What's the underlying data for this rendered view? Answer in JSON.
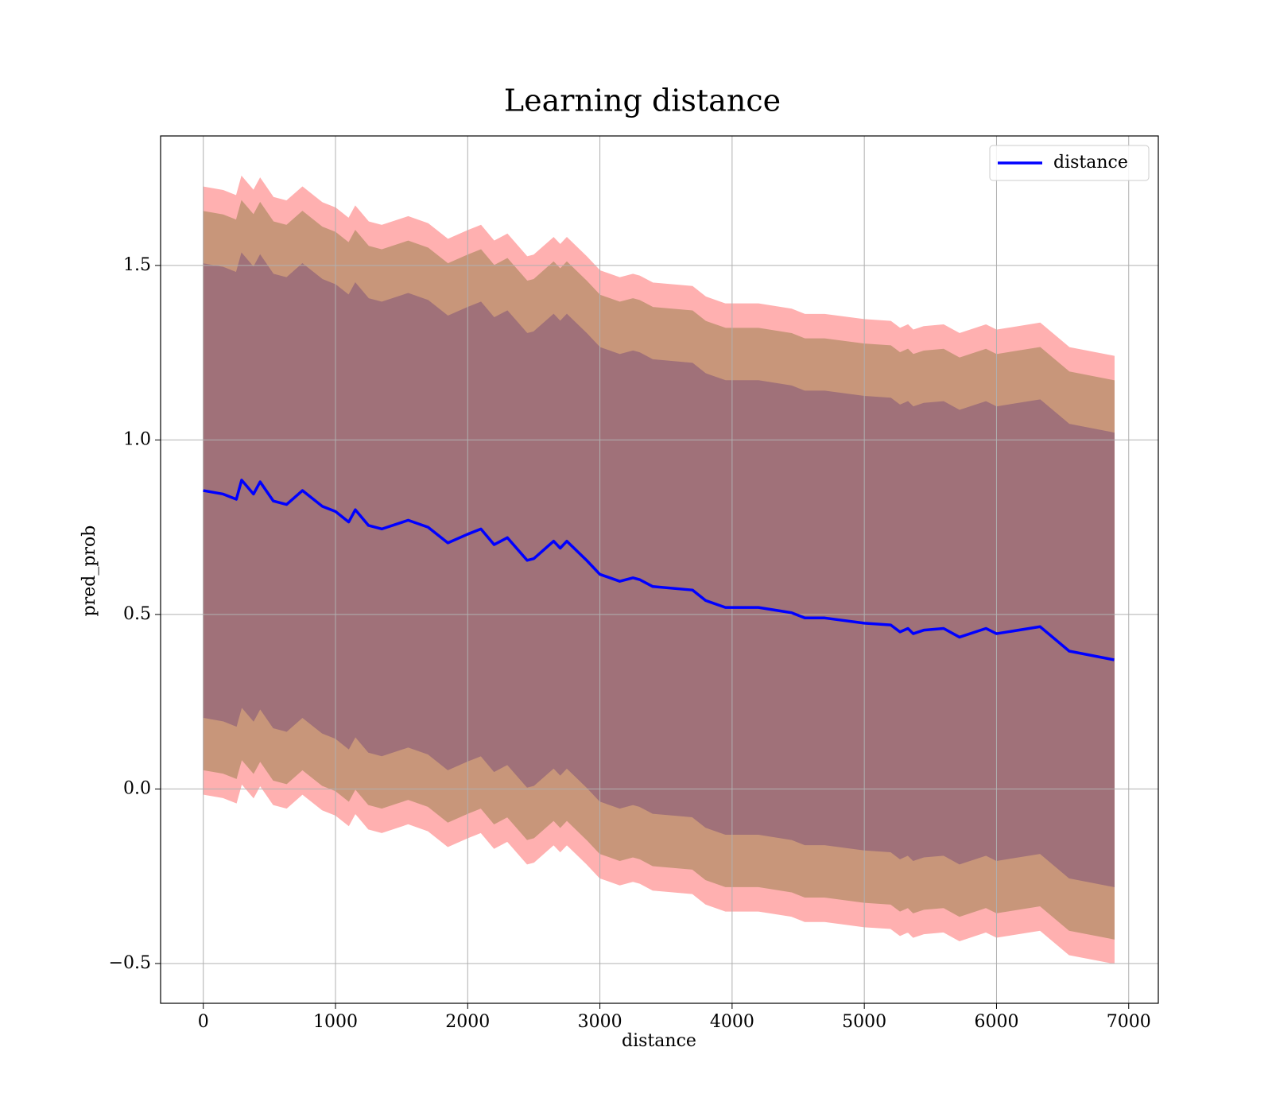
{
  "chart_data": {
    "type": "line",
    "title": "Learning distance",
    "x_label": "distance",
    "y_label": "pred_prob",
    "x": [
      0,
      150,
      250,
      290,
      380,
      430,
      530,
      630,
      750,
      900,
      1000,
      1100,
      1150,
      1250,
      1350,
      1550,
      1700,
      1850,
      2000,
      2100,
      2200,
      2300,
      2450,
      2500,
      2650,
      2700,
      2750,
      2900,
      3000,
      3150,
      3250,
      3300,
      3400,
      3700,
      3800,
      3950,
      4200,
      4450,
      4550,
      4700,
      5000,
      5200,
      5270,
      5330,
      5370,
      5450,
      5600,
      5720,
      5920,
      6000,
      6330,
      6550,
      6890
    ],
    "series": [
      {
        "name": "distance",
        "color": "#0000ff",
        "values": [
          0.855,
          0.845,
          0.83,
          0.885,
          0.845,
          0.88,
          0.825,
          0.815,
          0.855,
          0.81,
          0.795,
          0.765,
          0.8,
          0.755,
          0.745,
          0.77,
          0.75,
          0.705,
          0.73,
          0.745,
          0.7,
          0.72,
          0.655,
          0.66,
          0.71,
          0.69,
          0.71,
          0.655,
          0.615,
          0.595,
          0.605,
          0.6,
          0.58,
          0.57,
          0.54,
          0.52,
          0.52,
          0.505,
          0.49,
          0.49,
          0.475,
          0.47,
          0.45,
          0.46,
          0.445,
          0.455,
          0.46,
          0.435,
          0.46,
          0.445,
          0.465,
          0.395,
          0.37
        ]
      }
    ],
    "bands": [
      {
        "color": "#ffb0b0",
        "upper": [
          1.725,
          1.715,
          1.7,
          1.755,
          1.715,
          1.75,
          1.695,
          1.685,
          1.725,
          1.68,
          1.665,
          1.635,
          1.67,
          1.625,
          1.615,
          1.64,
          1.62,
          1.575,
          1.6,
          1.615,
          1.57,
          1.59,
          1.525,
          1.53,
          1.58,
          1.56,
          1.58,
          1.525,
          1.485,
          1.465,
          1.475,
          1.47,
          1.45,
          1.44,
          1.41,
          1.39,
          1.39,
          1.375,
          1.36,
          1.36,
          1.345,
          1.34,
          1.32,
          1.33,
          1.315,
          1.325,
          1.33,
          1.305,
          1.33,
          1.315,
          1.335,
          1.265,
          1.24
        ],
        "lower": [
          -0.015,
          -0.025,
          -0.04,
          0.015,
          -0.025,
          0.01,
          -0.045,
          -0.055,
          -0.015,
          -0.06,
          -0.075,
          -0.105,
          -0.07,
          -0.115,
          -0.125,
          -0.1,
          -0.12,
          -0.165,
          -0.14,
          -0.125,
          -0.17,
          -0.15,
          -0.215,
          -0.21,
          -0.16,
          -0.18,
          -0.16,
          -0.215,
          -0.255,
          -0.275,
          -0.265,
          -0.27,
          -0.29,
          -0.3,
          -0.33,
          -0.35,
          -0.35,
          -0.365,
          -0.38,
          -0.38,
          -0.395,
          -0.4,
          -0.42,
          -0.41,
          -0.425,
          -0.415,
          -0.41,
          -0.435,
          -0.41,
          -0.425,
          -0.405,
          -0.475,
          -0.5
        ]
      },
      {
        "color": "#c8967a",
        "upper": [
          1.655,
          1.645,
          1.63,
          1.685,
          1.645,
          1.68,
          1.625,
          1.615,
          1.655,
          1.61,
          1.595,
          1.565,
          1.6,
          1.555,
          1.545,
          1.57,
          1.55,
          1.505,
          1.53,
          1.545,
          1.5,
          1.52,
          1.455,
          1.46,
          1.51,
          1.49,
          1.51,
          1.455,
          1.415,
          1.395,
          1.405,
          1.4,
          1.38,
          1.37,
          1.34,
          1.32,
          1.32,
          1.305,
          1.29,
          1.29,
          1.275,
          1.27,
          1.25,
          1.26,
          1.245,
          1.255,
          1.26,
          1.235,
          1.26,
          1.245,
          1.265,
          1.195,
          1.17
        ],
        "lower": [
          0.055,
          0.045,
          0.03,
          0.085,
          0.045,
          0.08,
          0.025,
          0.015,
          0.055,
          0.01,
          -0.005,
          -0.035,
          0,
          -0.045,
          -0.055,
          -0.03,
          -0.05,
          -0.095,
          -0.07,
          -0.055,
          -0.1,
          -0.08,
          -0.145,
          -0.14,
          -0.09,
          -0.11,
          -0.09,
          -0.145,
          -0.185,
          -0.205,
          -0.195,
          -0.2,
          -0.22,
          -0.23,
          -0.26,
          -0.28,
          -0.28,
          -0.295,
          -0.31,
          -0.31,
          -0.325,
          -0.33,
          -0.35,
          -0.34,
          -0.355,
          -0.345,
          -0.34,
          -0.365,
          -0.34,
          -0.355,
          -0.335,
          -0.405,
          -0.43
        ]
      },
      {
        "color": "#a07179",
        "upper": [
          1.505,
          1.495,
          1.48,
          1.535,
          1.495,
          1.53,
          1.475,
          1.465,
          1.505,
          1.46,
          1.445,
          1.415,
          1.45,
          1.405,
          1.395,
          1.42,
          1.4,
          1.355,
          1.38,
          1.395,
          1.35,
          1.37,
          1.305,
          1.31,
          1.36,
          1.34,
          1.36,
          1.305,
          1.265,
          1.245,
          1.255,
          1.25,
          1.23,
          1.22,
          1.19,
          1.17,
          1.17,
          1.155,
          1.14,
          1.14,
          1.125,
          1.12,
          1.1,
          1.11,
          1.095,
          1.105,
          1.11,
          1.085,
          1.11,
          1.095,
          1.115,
          1.045,
          1.02
        ],
        "lower": [
          0.205,
          0.195,
          0.18,
          0.235,
          0.195,
          0.23,
          0.175,
          0.165,
          0.205,
          0.16,
          0.145,
          0.115,
          0.15,
          0.105,
          0.095,
          0.12,
          0.1,
          0.055,
          0.08,
          0.095,
          0.05,
          0.07,
          0.005,
          0.01,
          0.06,
          0.04,
          0.06,
          0.005,
          -0.035,
          -0.055,
          -0.045,
          -0.05,
          -0.07,
          -0.08,
          -0.11,
          -0.13,
          -0.13,
          -0.145,
          -0.16,
          -0.16,
          -0.175,
          -0.18,
          -0.2,
          -0.19,
          -0.205,
          -0.195,
          -0.19,
          -0.215,
          -0.19,
          -0.205,
          -0.185,
          -0.255,
          -0.28
        ]
      }
    ],
    "xlim": [
      -323,
      7224
    ],
    "ylim": [
      -0.614,
      1.871
    ],
    "xticks": [
      0,
      1000,
      2000,
      3000,
      4000,
      5000,
      6000,
      7000
    ],
    "yticks": [
      {
        "value": -0.5,
        "label": "−0.5"
      },
      {
        "value": 0,
        "label": "0.0"
      },
      0.5,
      {
        "value": 1,
        "label": "1.0"
      },
      1.5
    ],
    "grid": true,
    "legend": "upper right"
  }
}
